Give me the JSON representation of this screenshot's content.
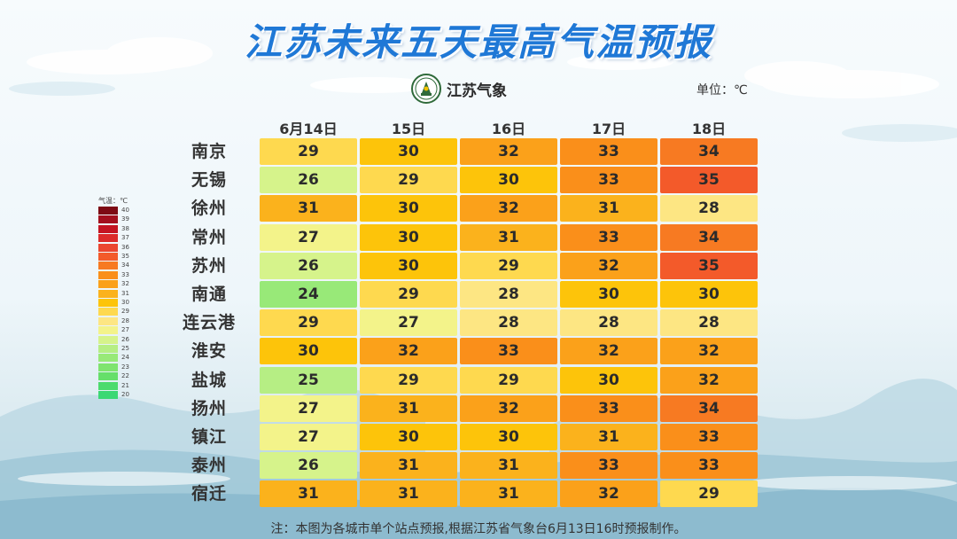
{
  "title": "江苏未来五天最高气温预报",
  "brand": {
    "name": "江苏气象"
  },
  "unit_label": "单位：℃",
  "note": "注：本图为各城市单个站点预报,根据江苏省气象台6月13日16时预报制作。",
  "legend": {
    "title": "气温：℃",
    "levels": [
      40,
      39,
      38,
      37,
      36,
      35,
      34,
      33,
      32,
      31,
      30,
      29,
      28,
      27,
      26,
      25,
      24,
      23,
      22,
      21,
      20
    ],
    "colors": {
      "40": "#7d0a14",
      "39": "#a30f1e",
      "38": "#c41422",
      "37": "#dc2a2a",
      "36": "#eb4630",
      "35": "#f35a2a",
      "34": "#f77a22",
      "33": "#fa8f1a",
      "32": "#fba11a",
      "31": "#fbb21c",
      "30": "#fdc40a",
      "29": "#fed94f",
      "28": "#fde683",
      "27": "#f3f38a",
      "26": "#d6f38b",
      "25": "#b6ee84",
      "24": "#98e978",
      "23": "#7fe46f",
      "22": "#66df6a",
      "21": "#4cdb6d",
      "20": "#3bd874"
    }
  },
  "chart_data": {
    "type": "heatmap",
    "title": "江苏未来五天最高气温预报",
    "unit": "℃",
    "columns": [
      "6月14日",
      "15日",
      "16日",
      "17日",
      "18日"
    ],
    "rows": [
      {
        "city": "南京",
        "values": [
          29,
          30,
          32,
          33,
          34
        ]
      },
      {
        "city": "无锡",
        "values": [
          26,
          29,
          30,
          33,
          35
        ]
      },
      {
        "city": "徐州",
        "values": [
          31,
          30,
          32,
          31,
          28
        ]
      },
      {
        "city": "常州",
        "values": [
          27,
          30,
          31,
          33,
          34
        ]
      },
      {
        "city": "苏州",
        "values": [
          26,
          30,
          29,
          32,
          35
        ]
      },
      {
        "city": "南通",
        "values": [
          24,
          29,
          28,
          30,
          30
        ]
      },
      {
        "city": "连云港",
        "values": [
          29,
          27,
          28,
          28,
          28
        ]
      },
      {
        "city": "淮安",
        "values": [
          30,
          32,
          33,
          32,
          32
        ]
      },
      {
        "city": "盐城",
        "values": [
          25,
          29,
          29,
          30,
          32
        ]
      },
      {
        "city": "扬州",
        "values": [
          27,
          31,
          32,
          33,
          34
        ]
      },
      {
        "city": "镇江",
        "values": [
          27,
          30,
          30,
          31,
          33
        ]
      },
      {
        "city": "泰州",
        "values": [
          26,
          31,
          31,
          33,
          33
        ]
      },
      {
        "city": "宿迁",
        "values": [
          31,
          31,
          31,
          32,
          29
        ]
      }
    ]
  }
}
